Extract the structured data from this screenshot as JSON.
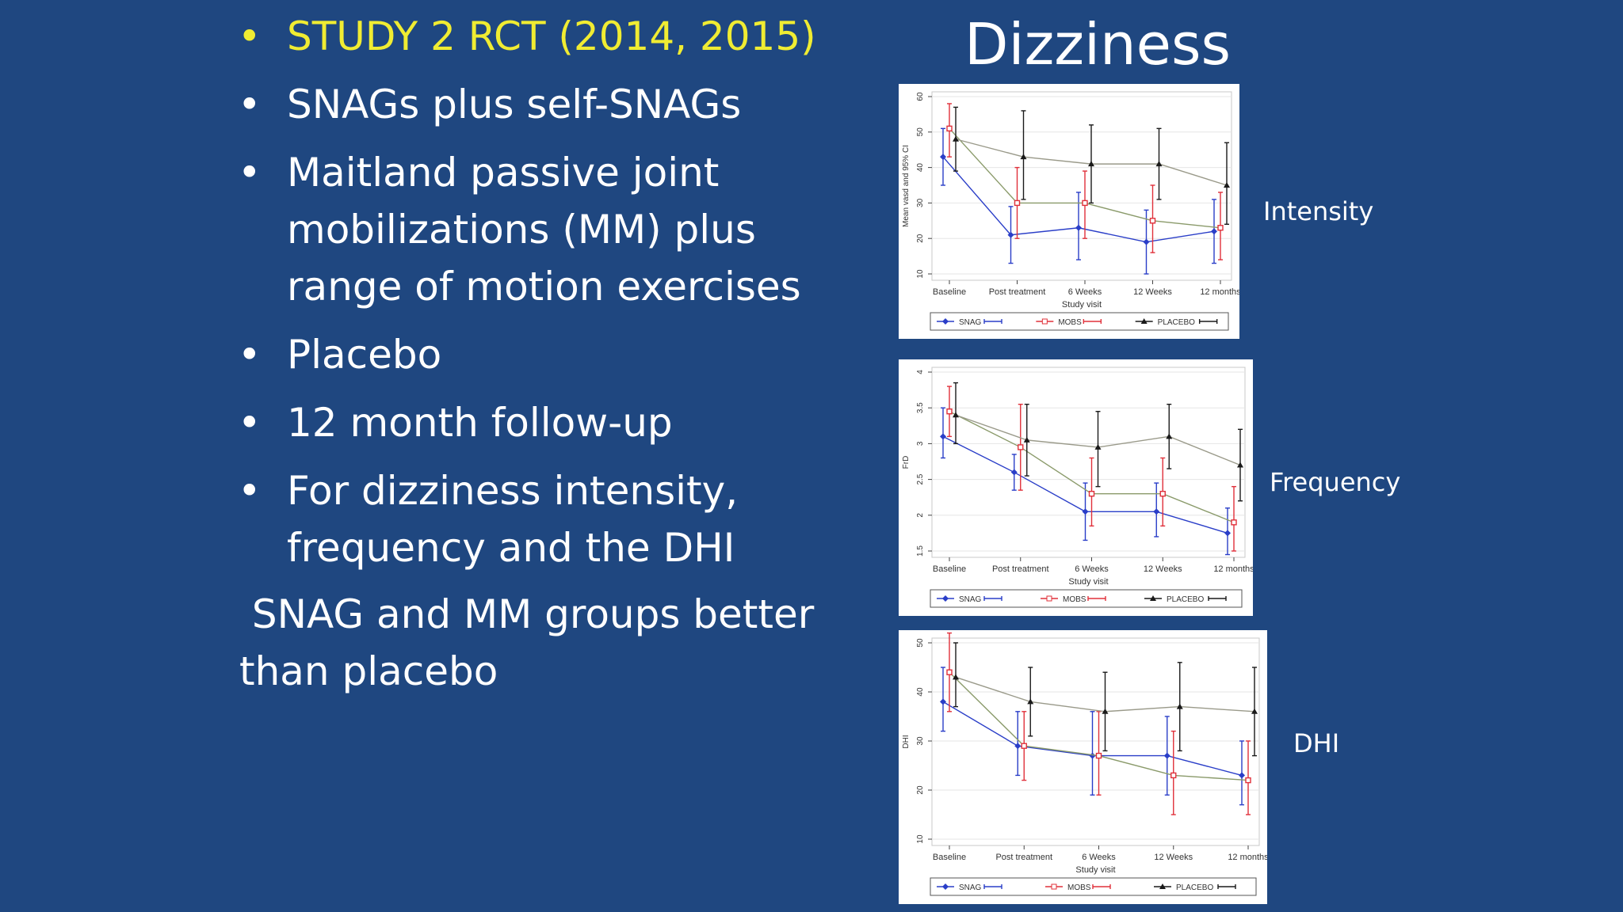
{
  "bullets": [
    {
      "text": "STUDY 2 RCT (2014, 2015)",
      "highlight": true
    },
    {
      "text": "SNAGs plus self-SNAGs",
      "highlight": false
    },
    {
      "text": "Maitland passive joint mobilizations (MM)  plus range of motion exercises",
      "highlight": false
    },
    {
      "text": "Placebo",
      "highlight": false
    },
    {
      "text": "12 month follow-up",
      "highlight": false
    },
    {
      "text": "For dizziness intensity, frequency and the DHI",
      "highlight": false
    }
  ],
  "bullet_glyph": "•",
  "conclusion": " SNAG and MM groups better than placebo",
  "title": "Dizziness",
  "colors": {
    "background": "#1f4780",
    "highlight": "#f0ec32",
    "snag": "#2a3ec8",
    "mobs": "#e0303a",
    "placebo": "#1a1a1a"
  },
  "chart_data": [
    {
      "type": "line",
      "side_label": "Intensity",
      "ylabel": "Mean vasd and 95% CI",
      "xlabel": "Study visit",
      "categories": [
        "Baseline",
        "Post treatment",
        "6 Weeks",
        "12 Weeks",
        "12 months"
      ],
      "ylim": [
        10,
        60
      ],
      "yticks": [
        "10",
        "20",
        "30",
        "40",
        "50",
        "60"
      ],
      "grid": true,
      "legend": "bottom",
      "series": [
        {
          "name": "SNAG",
          "marker": "diamond",
          "values": [
            43,
            21,
            23,
            19,
            22
          ],
          "ci": [
            [
              35,
              51
            ],
            [
              13,
              29
            ],
            [
              14,
              33
            ],
            [
              10,
              28
            ],
            [
              13,
              31
            ]
          ]
        },
        {
          "name": "MOBS",
          "marker": "square",
          "values": [
            51,
            30,
            30,
            25,
            23
          ],
          "ci": [
            [
              43,
              58
            ],
            [
              20,
              40
            ],
            [
              20,
              39
            ],
            [
              16,
              35
            ],
            [
              14,
              33
            ]
          ]
        },
        {
          "name": "PLACEBO",
          "marker": "triangle",
          "values": [
            48,
            43,
            41,
            41,
            35
          ],
          "ci": [
            [
              39,
              57
            ],
            [
              31,
              56
            ],
            [
              30,
              52
            ],
            [
              31,
              51
            ],
            [
              24,
              47
            ]
          ]
        }
      ]
    },
    {
      "type": "line",
      "side_label": "Frequency",
      "ylabel": "FrD",
      "xlabel": "Study visit",
      "categories": [
        "Baseline",
        "Post treatment",
        "6 Weeks",
        "12 Weeks",
        "12 months"
      ],
      "ylim": [
        1.5,
        4
      ],
      "yticks": [
        "1.5",
        "2",
        "2.5",
        "3",
        "3.5",
        "4"
      ],
      "grid": true,
      "legend": "bottom",
      "series": [
        {
          "name": "SNAG",
          "marker": "diamond",
          "values": [
            3.1,
            2.6,
            2.05,
            2.05,
            1.75
          ],
          "ci": [
            [
              2.8,
              3.5
            ],
            [
              2.35,
              2.85
            ],
            [
              1.65,
              2.45
            ],
            [
              1.7,
              2.45
            ],
            [
              1.45,
              2.1
            ]
          ]
        },
        {
          "name": "MOBS",
          "marker": "square",
          "values": [
            3.45,
            2.95,
            2.3,
            2.3,
            1.9
          ],
          "ci": [
            [
              3.1,
              3.8
            ],
            [
              2.35,
              3.55
            ],
            [
              1.85,
              2.8
            ],
            [
              1.85,
              2.8
            ],
            [
              1.5,
              2.4
            ]
          ]
        },
        {
          "name": "PLACEBO",
          "marker": "triangle",
          "values": [
            3.4,
            3.05,
            2.95,
            3.1,
            2.7
          ],
          "ci": [
            [
              3.0,
              3.85
            ],
            [
              2.55,
              3.55
            ],
            [
              2.4,
              3.45
            ],
            [
              2.65,
              3.55
            ],
            [
              2.2,
              3.2
            ]
          ]
        }
      ]
    },
    {
      "type": "line",
      "side_label": "DHI",
      "ylabel": "DHI",
      "xlabel": "Study visit",
      "categories": [
        "Baseline",
        "Post treatment",
        "6 Weeks",
        "12 Weeks",
        "12 months"
      ],
      "ylim": [
        10,
        50
      ],
      "yticks": [
        "10",
        "20",
        "30",
        "40",
        "50"
      ],
      "grid": true,
      "legend": "bottom",
      "series": [
        {
          "name": "SNAG",
          "marker": "diamond",
          "values": [
            38,
            29,
            27,
            27,
            23
          ],
          "ci": [
            [
              32,
              45
            ],
            [
              23,
              36
            ],
            [
              19,
              36
            ],
            [
              19,
              35
            ],
            [
              17,
              30
            ]
          ]
        },
        {
          "name": "MOBS",
          "marker": "square",
          "values": [
            44,
            29,
            27,
            23,
            22
          ],
          "ci": [
            [
              36,
              52
            ],
            [
              22,
              36
            ],
            [
              19,
              36
            ],
            [
              15,
              32
            ],
            [
              15,
              30
            ]
          ]
        },
        {
          "name": "PLACEBO",
          "marker": "triangle",
          "values": [
            43,
            38,
            36,
            37,
            36
          ],
          "ci": [
            [
              37,
              50
            ],
            [
              31,
              45
            ],
            [
              28,
              44
            ],
            [
              28,
              46
            ],
            [
              27,
              45
            ]
          ]
        }
      ]
    }
  ]
}
